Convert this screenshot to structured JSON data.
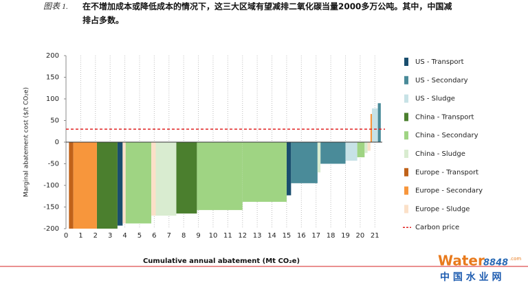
{
  "header": {
    "label": "图表 1.",
    "caption": [
      "在不增加成本或降低成本的情况下，这三大区域有望减排二氧化碳当量2000多万公吨。其中，中国减",
      "排占多数。"
    ]
  },
  "chart_data": {
    "type": "bar",
    "x_label": "Cumulative annual abatement (Mt CO₂e)",
    "y_label": "Marginal abatement cost ($/t CO₂e)",
    "xlim": [
      0,
      21.5
    ],
    "xticks": [
      0,
      1,
      2,
      3,
      4,
      5,
      6,
      7,
      8,
      9,
      10,
      11,
      12,
      13,
      14,
      15,
      16,
      17,
      18,
      19,
      20,
      21
    ],
    "ylim": [
      -200,
      200
    ],
    "yticks": [
      -200,
      -150,
      -100,
      -50,
      0,
      50,
      100,
      150,
      200
    ],
    "grid": true,
    "series": [
      {
        "name": "US - Transport",
        "color": "#1a4e6e",
        "x_start": [
          3.5,
          15
        ],
        "x_end": [
          3.85,
          15.3
        ],
        "values": [
          -193,
          -123
        ]
      },
      {
        "name": "US - Secondary",
        "color": "#4a8b99",
        "x_start": [
          15.3,
          17.3,
          21.2
        ],
        "x_end": [
          17.1,
          19,
          21.4
        ],
        "values": [
          -95,
          -50,
          90
        ]
      },
      {
        "name": "US - Sludge",
        "color": "#c7e2e6",
        "x_start": [
          19,
          20.8
        ],
        "x_end": [
          19.8,
          21.2
        ],
        "values": [
          -43,
          78
        ]
      },
      {
        "name": "China - Transport",
        "color": "#4b7f2e",
        "x_start": [
          2.1,
          7.5
        ],
        "x_end": [
          3.5,
          8.9
        ],
        "values": [
          -200,
          -165
        ]
      },
      {
        "name": "China - Secondary",
        "color": "#9fd483",
        "x_start": [
          4.05,
          8.9,
          12,
          19.8
        ],
        "x_end": [
          5.8,
          12,
          15,
          20.3
        ],
        "values": [
          -188,
          -157,
          -138,
          -35
        ]
      },
      {
        "name": "China - Sludge",
        "color": "#d9ecd0",
        "x_start": [
          6.1,
          17.1,
          20.3
        ],
        "x_end": [
          7.5,
          17.3,
          20.5
        ],
        "values": [
          -170,
          -70,
          -25
        ]
      },
      {
        "name": "Europe - Transport",
        "color": "#c0621a",
        "x_start": [
          0.2
        ],
        "x_end": [
          0.5
        ],
        "values": [
          -200
        ]
      },
      {
        "name": "Europe - Secondary",
        "color": "#f7963c",
        "x_start": [
          0.5,
          20.7
        ],
        "x_end": [
          2.1,
          20.8
        ],
        "values": [
          -200,
          65
        ]
      },
      {
        "name": "Europe - Sludge",
        "color": "#fbe0c8",
        "x_start": [
          3.85,
          5.8,
          20.5
        ],
        "x_end": [
          4.05,
          6.1,
          20.7
        ],
        "values": [
          -188,
          -170,
          -20
        ]
      }
    ],
    "reference_lines": [
      {
        "name": "Carbon price",
        "value": 30,
        "color": "#e02020"
      }
    ]
  },
  "logo": {
    "brand": "Water",
    "number": "8848",
    "domain": ".com",
    "name": "中 国 水 业 网"
  }
}
